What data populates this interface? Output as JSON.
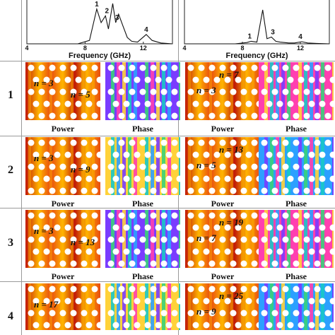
{
  "chart_data": [
    {
      "type": "line",
      "xlabel": "Frequency (GHz)",
      "ylabel": "",
      "xlim": [
        4,
        14
      ],
      "x_ticks": [
        "4",
        "8",
        "12"
      ],
      "x": [
        4,
        6,
        7.5,
        8.3,
        8.8,
        9.1,
        9.4,
        9.6,
        9.9,
        10.1,
        10.3,
        10.6,
        10.9,
        11.2,
        11.6,
        12.2,
        12.6,
        13.2,
        14
      ],
      "series": [
        {
          "values": [
            0.0,
            0.0,
            0.0,
            0.08,
            0.82,
            0.5,
            0.66,
            0.35,
            0.95,
            0.5,
            0.7,
            0.42,
            0.15,
            0.06,
            0.04,
            0.22,
            0.08,
            0.02,
            0.0
          ]
        }
      ],
      "peak_labels": [
        {
          "text": "1",
          "x": 8.8
        },
        {
          "text": "2",
          "x": 9.5
        },
        {
          "text": "3",
          "x": 10.2
        },
        {
          "text": "4",
          "x": 12.2
        }
      ]
    },
    {
      "type": "line",
      "xlabel": "Frequency (GHz)",
      "ylabel": "",
      "xlim": [
        4,
        14
      ],
      "x_ticks": [
        "4",
        "8",
        "12"
      ],
      "x": [
        4,
        6,
        7.5,
        8.3,
        8.6,
        9.0,
        9.4,
        9.7,
        10.0,
        10.3,
        10.6,
        10.9,
        11.2,
        11.6,
        12.1,
        12.5,
        13.1,
        14
      ],
      "series": [
        {
          "values": [
            0.0,
            0.0,
            0.0,
            0.03,
            0.06,
            0.04,
            0.8,
            0.12,
            0.16,
            0.06,
            0.04,
            0.03,
            0.02,
            0.02,
            0.05,
            0.02,
            0.01,
            0.0
          ]
        }
      ],
      "peak_labels": [
        {
          "text": "1",
          "x": 8.5
        },
        {
          "text": "3",
          "x": 10.1
        },
        {
          "text": "4",
          "x": 12.0
        }
      ]
    }
  ],
  "rows": [
    {
      "label": "1",
      "left_n": [
        "n = 3",
        "n = 5"
      ],
      "right_n": [
        "n = 7",
        "n = 3"
      ]
    },
    {
      "label": "2",
      "left_n": [
        "n = 3",
        "n = 9"
      ],
      "right_n": [
        "n = 13",
        "n = 5"
      ]
    },
    {
      "label": "3",
      "left_n": [
        "n = 3",
        "n = 13"
      ],
      "right_n": [
        "n = 19",
        "n = 7"
      ]
    },
    {
      "label": "4",
      "left_n": [
        "n = 17"
      ],
      "right_n": [
        "n = 25",
        "n = 9"
      ]
    }
  ],
  "captions": {
    "power": "Power",
    "phase": "Phase"
  },
  "colors": {
    "power_hot": "#ffb400",
    "power_mid": "#e84a10",
    "power_deep": "#c01808",
    "phase_palette": [
      "#2ca0ff",
      "#7a3cff",
      "#38d27a",
      "#ff3fb0",
      "#ffd23a",
      "#18c8c8"
    ]
  }
}
